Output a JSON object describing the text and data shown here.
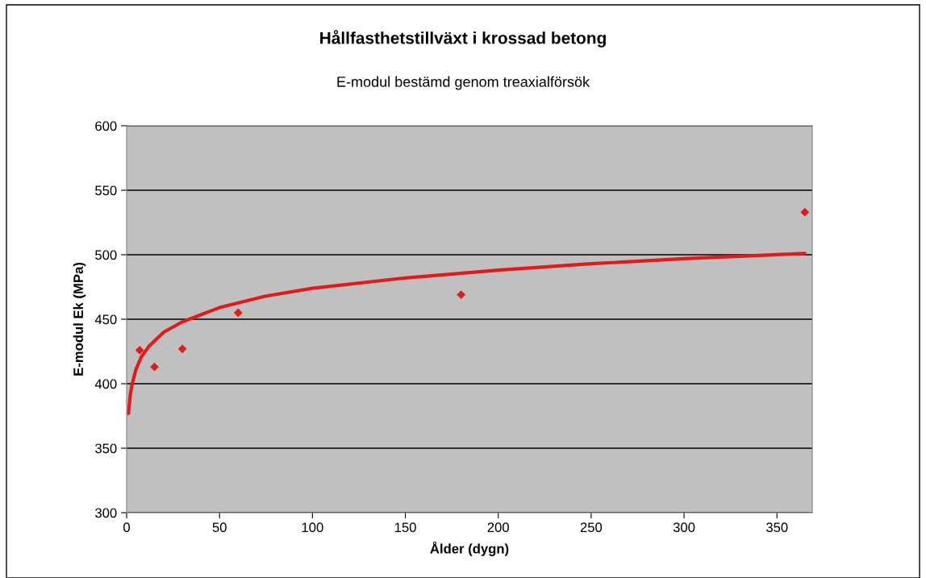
{
  "chart_data": {
    "type": "scatter",
    "title": "Hållfasthetstillväxt i krossad betong",
    "subtitle": "E-modul bestämd genom treaxialförsök",
    "xlabel": "Ålder (dygn)",
    "ylabel": "E-modul Ek (MPa)",
    "series": [
      {
        "color": "#e31a1c",
        "marker": "diamond",
        "x": [
          7,
          15,
          30,
          60,
          180,
          365
        ],
        "values": [
          426,
          413,
          427,
          455,
          469,
          533
        ]
      },
      {
        "type": "line",
        "color": "#e31a1c",
        "marker": "none",
        "line_style": "solid",
        "x": [
          1,
          2,
          3,
          5,
          8,
          12,
          20,
          30,
          50,
          75,
          100,
          150,
          200,
          250,
          300,
          365
        ],
        "values": [
          377,
          392,
          400,
          411,
          421,
          429,
          440,
          448,
          459,
          468,
          474,
          482,
          488,
          493,
          497,
          501
        ]
      }
    ],
    "xlim": [
      0,
      369
    ],
    "xticks": [
      0,
      50,
      100,
      150,
      200,
      250,
      300,
      350
    ],
    "ylim": [
      300,
      600
    ],
    "yticks": [
      300,
      350,
      400,
      450,
      500,
      550,
      600
    ],
    "grid": "y",
    "legend": false
  }
}
